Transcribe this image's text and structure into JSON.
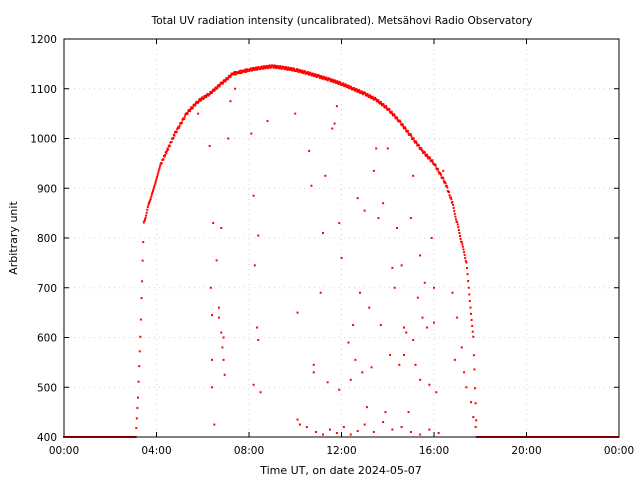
{
  "chart_data": {
    "type": "scatter",
    "title": "Total UV radiation intensity (uncalibrated). Metsähovi Radio Observatory",
    "xlabel": "Time UT, on date 2024-05-07",
    "ylabel": "Arbitrary unit",
    "xlim": [
      0,
      24
    ],
    "ylim": [
      400,
      1200
    ],
    "x_ticks": [
      0,
      4,
      8,
      12,
      16,
      20,
      24
    ],
    "x_tick_labels": [
      "00:00",
      "04:00",
      "08:00",
      "12:00",
      "16:00",
      "20:00",
      "00:00"
    ],
    "y_ticks": [
      400,
      500,
      600,
      700,
      800,
      900,
      1000,
      1100,
      1200
    ],
    "y_tick_labels": [
      "400",
      "500",
      "600",
      "700",
      "800",
      "900",
      "1000",
      "1100",
      "1200"
    ],
    "grid": true,
    "point_color": "#ff0000",
    "envelope": [
      [
        3.1,
        400
      ],
      [
        3.2,
        480
      ],
      [
        3.3,
        600
      ],
      [
        3.45,
        830
      ],
      [
        3.8,
        890
      ],
      [
        4.2,
        950
      ],
      [
        4.8,
        1010
      ],
      [
        5.3,
        1050
      ],
      [
        5.8,
        1075
      ],
      [
        6.3,
        1090
      ],
      [
        6.8,
        1110
      ],
      [
        7.3,
        1130
      ],
      [
        8.0,
        1138
      ],
      [
        8.5,
        1142
      ],
      [
        9.0,
        1145
      ],
      [
        9.5,
        1142
      ],
      [
        10.0,
        1138
      ],
      [
        10.5,
        1132
      ],
      [
        11.0,
        1125
      ],
      [
        11.5,
        1118
      ],
      [
        12.0,
        1110
      ],
      [
        12.5,
        1100
      ],
      [
        13.0,
        1090
      ],
      [
        13.5,
        1078
      ],
      [
        14.0,
        1060
      ],
      [
        14.5,
        1035
      ],
      [
        15.0,
        1005
      ],
      [
        15.5,
        975
      ],
      [
        16.0,
        950
      ],
      [
        16.5,
        910
      ],
      [
        16.8,
        870
      ],
      [
        17.0,
        830
      ],
      [
        17.2,
        790
      ],
      [
        17.4,
        750
      ],
      [
        17.5,
        700
      ],
      [
        17.7,
        600
      ],
      [
        17.85,
        400
      ]
    ],
    "scattered_points": [
      [
        6.3,
        985
      ],
      [
        6.45,
        830
      ],
      [
        6.6,
        755
      ],
      [
        6.7,
        660
      ],
      [
        6.8,
        820
      ],
      [
        6.9,
        600
      ],
      [
        7.1,
        1000
      ],
      [
        7.2,
        1075
      ],
      [
        7.4,
        1100
      ],
      [
        5.8,
        1050
      ],
      [
        6.35,
        700
      ],
      [
        6.4,
        645
      ],
      [
        6.4,
        555
      ],
      [
        6.4,
        500
      ],
      [
        6.5,
        425
      ],
      [
        6.7,
        640
      ],
      [
        6.8,
        610
      ],
      [
        6.85,
        580
      ],
      [
        6.9,
        555
      ],
      [
        6.95,
        525
      ],
      [
        8.1,
        1010
      ],
      [
        8.2,
        885
      ],
      [
        8.25,
        745
      ],
      [
        8.4,
        805
      ],
      [
        8.35,
        620
      ],
      [
        8.4,
        595
      ],
      [
        8.5,
        490
      ],
      [
        8.2,
        505
      ],
      [
        8.8,
        1035
      ],
      [
        10.0,
        1050
      ],
      [
        10.1,
        650
      ],
      [
        10.1,
        435
      ],
      [
        10.2,
        425
      ],
      [
        10.6,
        975
      ],
      [
        10.7,
        905
      ],
      [
        10.8,
        545
      ],
      [
        10.8,
        530
      ],
      [
        11.1,
        690
      ],
      [
        11.2,
        810
      ],
      [
        11.3,
        925
      ],
      [
        11.4,
        510
      ],
      [
        11.6,
        1020
      ],
      [
        11.7,
        1030
      ],
      [
        11.8,
        1065
      ],
      [
        11.9,
        830
      ],
      [
        11.9,
        495
      ],
      [
        12.0,
        760
      ],
      [
        12.3,
        590
      ],
      [
        12.4,
        515
      ],
      [
        12.5,
        625
      ],
      [
        12.6,
        555
      ],
      [
        12.7,
        880
      ],
      [
        12.8,
        690
      ],
      [
        12.9,
        530
      ],
      [
        13.0,
        855
      ],
      [
        13.1,
        460
      ],
      [
        13.2,
        660
      ],
      [
        13.3,
        540
      ],
      [
        13.4,
        935
      ],
      [
        13.5,
        980
      ],
      [
        13.6,
        840
      ],
      [
        13.7,
        625
      ],
      [
        13.8,
        870
      ],
      [
        13.9,
        450
      ],
      [
        14.0,
        980
      ],
      [
        14.1,
        565
      ],
      [
        14.2,
        740
      ],
      [
        14.3,
        700
      ],
      [
        14.4,
        820
      ],
      [
        14.5,
        545
      ],
      [
        14.6,
        745
      ],
      [
        14.7,
        620
      ],
      [
        14.7,
        565
      ],
      [
        14.8,
        610
      ],
      [
        14.9,
        450
      ],
      [
        15.0,
        840
      ],
      [
        15.1,
        925
      ],
      [
        15.1,
        595
      ],
      [
        15.2,
        545
      ],
      [
        15.3,
        680
      ],
      [
        15.4,
        765
      ],
      [
        15.4,
        515
      ],
      [
        15.5,
        640
      ],
      [
        15.6,
        710
      ],
      [
        15.7,
        620
      ],
      [
        15.8,
        505
      ],
      [
        15.9,
        800
      ],
      [
        16.0,
        700
      ],
      [
        16.0,
        630
      ],
      [
        16.1,
        490
      ],
      [
        16.4,
        935
      ],
      [
        16.8,
        690
      ],
      [
        16.9,
        555
      ],
      [
        17.0,
        640
      ],
      [
        17.2,
        580
      ],
      [
        17.3,
        530
      ],
      [
        17.4,
        500
      ],
      [
        17.6,
        470
      ],
      [
        17.7,
        440
      ],
      [
        17.8,
        420
      ],
      [
        10.5,
        420
      ],
      [
        10.9,
        410
      ],
      [
        11.2,
        405
      ],
      [
        11.5,
        415
      ],
      [
        11.8,
        408
      ],
      [
        12.1,
        420
      ],
      [
        12.4,
        405
      ],
      [
        12.7,
        412
      ],
      [
        13.0,
        425
      ],
      [
        13.4,
        410
      ],
      [
        13.8,
        430
      ],
      [
        14.2,
        415
      ],
      [
        14.6,
        420
      ],
      [
        15.0,
        410
      ],
      [
        15.4,
        405
      ],
      [
        15.8,
        415
      ],
      [
        16.2,
        408
      ]
    ],
    "night_level": 400
  }
}
